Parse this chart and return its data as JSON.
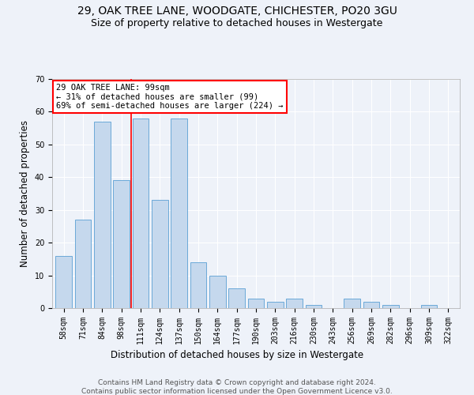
{
  "title_line1": "29, OAK TREE LANE, WOODGATE, CHICHESTER, PO20 3GU",
  "title_line2": "Size of property relative to detached houses in Westergate",
  "xlabel": "Distribution of detached houses by size in Westergate",
  "ylabel": "Number of detached properties",
  "categories": [
    "58sqm",
    "71sqm",
    "84sqm",
    "98sqm",
    "111sqm",
    "124sqm",
    "137sqm",
    "150sqm",
    "164sqm",
    "177sqm",
    "190sqm",
    "203sqm",
    "216sqm",
    "230sqm",
    "243sqm",
    "256sqm",
    "269sqm",
    "282sqm",
    "296sqm",
    "309sqm",
    "322sqm"
  ],
  "values": [
    16,
    27,
    57,
    39,
    58,
    33,
    58,
    14,
    10,
    6,
    3,
    2,
    3,
    1,
    0,
    3,
    2,
    1,
    0,
    1,
    0
  ],
  "bar_color": "#c5d8ed",
  "bar_edge_color": "#5a9fd4",
  "vline_pos": 3.5,
  "annotation_line1": "29 OAK TREE LANE: 99sqm",
  "annotation_line2": "← 31% of detached houses are smaller (99)",
  "annotation_line3": "69% of semi-detached houses are larger (224) →",
  "annotation_box_color": "white",
  "annotation_box_edge": "red",
  "vline_color": "red",
  "ylim": [
    0,
    70
  ],
  "yticks": [
    0,
    10,
    20,
    30,
    40,
    50,
    60,
    70
  ],
  "footer_line1": "Contains HM Land Registry data © Crown copyright and database right 2024.",
  "footer_line2": "Contains public sector information licensed under the Open Government Licence v3.0.",
  "bg_color": "#eef2f9",
  "grid_color": "#ffffff",
  "title_fontsize": 10,
  "subtitle_fontsize": 9,
  "axis_label_fontsize": 8.5,
  "tick_fontsize": 7,
  "footer_fontsize": 6.5,
  "annotation_fontsize": 7.5
}
